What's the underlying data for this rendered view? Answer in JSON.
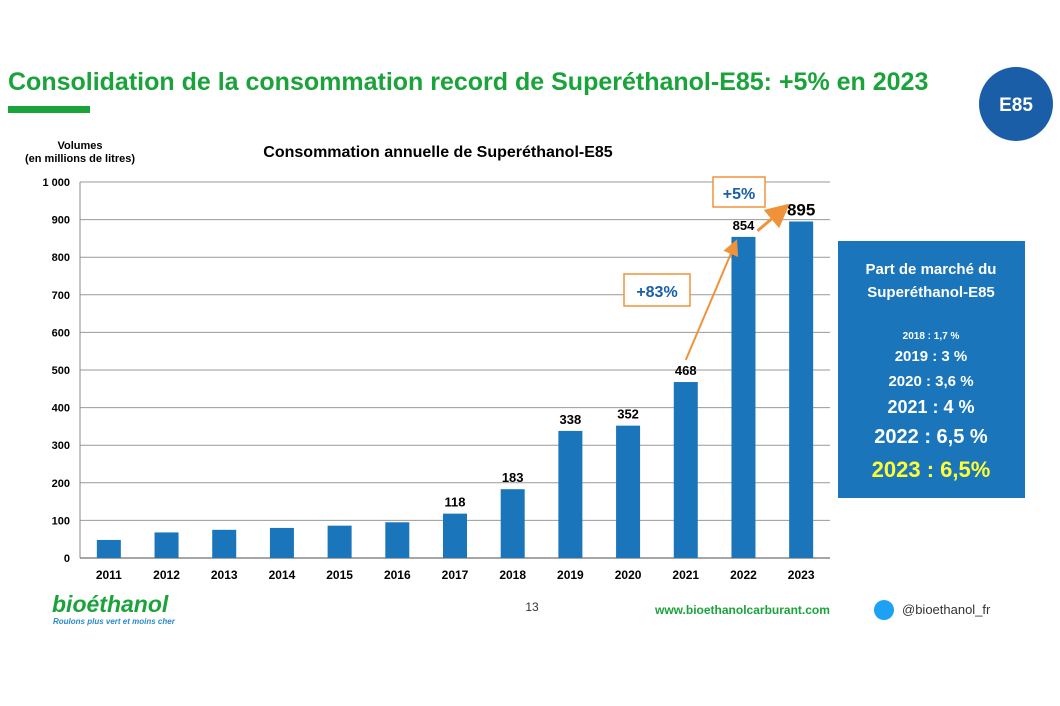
{
  "slide": {
    "title": "Consolidation de la consommation record de Superéthanol-E85: +5% en 2023",
    "badge": "E85",
    "page_number": "13",
    "website": "www.bioethanolcarburant.com",
    "twitter": "@bioethanol_fr",
    "logo_text": "bioéthanol",
    "logo_tagline": "Roulons plus vert et moins cher",
    "colors": {
      "title_green": "#1aa33a",
      "bar_blue": "#1a75bb",
      "panel_blue": "#1a75bb",
      "annotation_orange": "#f0923a",
      "highlight_yellow": "#ffff33"
    },
    "icons": [
      "twitter-icon"
    ]
  },
  "chart_data": {
    "type": "bar",
    "title": "Consommation annuelle de Superéthanol-E85",
    "ylabel": "Volumes",
    "ylabel_sub": "(en millions de litres)",
    "categories": [
      "2011",
      "2012",
      "2013",
      "2014",
      "2015",
      "2016",
      "2017",
      "2018",
      "2019",
      "2020",
      "2021",
      "2022",
      "2023"
    ],
    "values": [
      48,
      68,
      75,
      80,
      86,
      95,
      118,
      183,
      338,
      352,
      468,
      854,
      895
    ],
    "data_labels": [
      "",
      "",
      "",
      "",
      "",
      "",
      "118",
      "183",
      "338",
      "352",
      "468",
      "854",
      "895"
    ],
    "ylim": [
      0,
      1000
    ],
    "yticks": [
      "0",
      "100",
      "200",
      "300",
      "400",
      "500",
      "600",
      "700",
      "800",
      "900",
      "1 000"
    ],
    "grid": true,
    "annotations": [
      {
        "text": "+83%",
        "from": "2021",
        "to": "2022"
      },
      {
        "text": "+5%",
        "from": "2022",
        "to": "2023"
      }
    ],
    "market_share": {
      "title_line1": "Part de marché du",
      "title_line2": "Superéthanol-E85",
      "entries": [
        "2018 : 1,7 %",
        "2019 : 3 %",
        "2020 : 3,6 %",
        "2021 : 4 %",
        "2022 : 6,5 %",
        "2023 : 6,5%"
      ]
    }
  }
}
